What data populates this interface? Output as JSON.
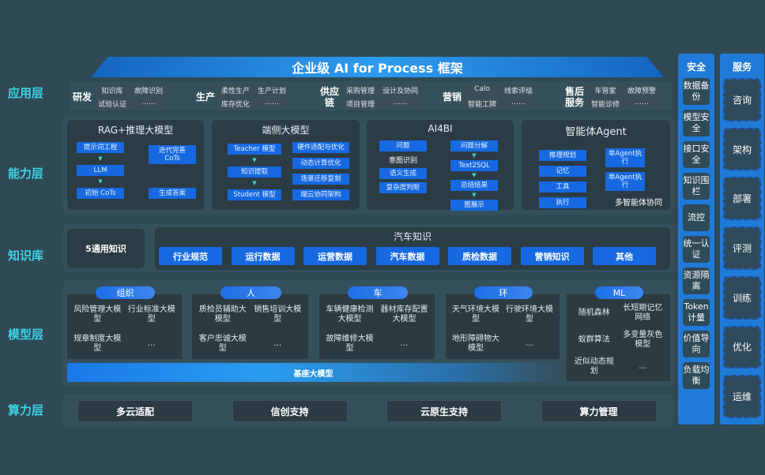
{
  "title": "企业级 AI for Process 框架",
  "layers": [
    "应用层",
    "能力层",
    "知识库",
    "模型层",
    "算力层"
  ],
  "app_groups": [
    {
      "name": "研发",
      "items": [
        "知识库",
        "故障识别",
        "试验认证",
        "……"
      ]
    },
    {
      "name": "生产",
      "items": [
        "柔性生产",
        "生产计划",
        "库存优化",
        "……"
      ]
    },
    {
      "name": "供应链",
      "items": [
        "采购管理",
        "设计及协同",
        "项目管理",
        "……"
      ]
    },
    {
      "name": "营销",
      "items": [
        "Calo",
        "线索评级",
        "智能工牌",
        "……"
      ]
    },
    {
      "name": "售后服务",
      "items": [
        "车管家",
        "故障预警",
        "智能诊修",
        "……"
      ]
    }
  ],
  "capabilities": {
    "rag": {
      "title": "RAG+推理大模型",
      "left": [
        "提示词工程",
        "LLM",
        "初始 CoTs"
      ],
      "right": [
        "迭代完善 CoTs",
        "生成答案"
      ]
    },
    "edge": {
      "title": "端侧大模型",
      "left": [
        "Teacher 模型",
        "知识提取",
        "Student 模型"
      ],
      "right": [
        "硬件适配与优化",
        "动态计算优化",
        "场景迁移复刻",
        "端云协同架构"
      ]
    },
    "ai4bi": {
      "title": "AI4BI",
      "left": [
        "问题",
        "意图识别",
        "语义生成",
        "复杂度判断"
      ],
      "right": [
        "问题分解",
        "Text2SQL",
        "总结结果",
        "图展示"
      ]
    },
    "agent": {
      "title": "智能体Agent",
      "left": [
        "推理规划",
        "记忆",
        "工具",
        "执行"
      ],
      "right": [
        "单Agent执行",
        "单Agent执行"
      ],
      "footer": "多智能体协同"
    }
  },
  "knowledge": {
    "general": "5通用知识",
    "auto_title": "汽车知识",
    "items": [
      "行业规范",
      "运行数据",
      "运营数据",
      "汽车数据",
      "质检数据",
      "营销知识",
      "其他"
    ]
  },
  "models": [
    {
      "tab": "组织",
      "items": [
        "风险管理大模型",
        "行业标准大模型",
        "规章制度大模型",
        "…"
      ]
    },
    {
      "tab": "人",
      "items": [
        "质检员辅助大模型",
        "销售培训大模型",
        "客户忠诚大模型",
        "…"
      ]
    },
    {
      "tab": "车",
      "items": [
        "车辆健康检测大模型",
        "器材库存配置大模型",
        "故障维修大模型",
        "…"
      ]
    },
    {
      "tab": "环",
      "items": [
        "天气环境大模型",
        "行驶环境大模型",
        "地形障碍物大模型",
        "…"
      ]
    },
    {
      "tab": "ML",
      "items": [
        "随机森林",
        "长短期记忆网络",
        "蚁群算法",
        "多变量灰色模型",
        "近似动态规划",
        "…"
      ]
    }
  ],
  "base_model": "基座大模型",
  "compute": [
    "多云适配",
    "信创支持",
    "云原生支持",
    "算力管理"
  ],
  "security": {
    "title": "安全",
    "items": [
      "数据备份",
      "模型安全",
      "接口安全",
      "知识围栏",
      "流控",
      "统一认证",
      "资源隔离",
      "Token计量",
      "价值导向",
      "负载均衡"
    ]
  },
  "services": {
    "title": "服务",
    "items": [
      "咨询",
      "架构",
      "部署",
      "评测",
      "训练",
      "优化",
      "运维"
    ]
  },
  "colors": {
    "background": "#2f4a55",
    "accent_blue": "#1669e0",
    "layer_label": "#3fd2e6"
  }
}
